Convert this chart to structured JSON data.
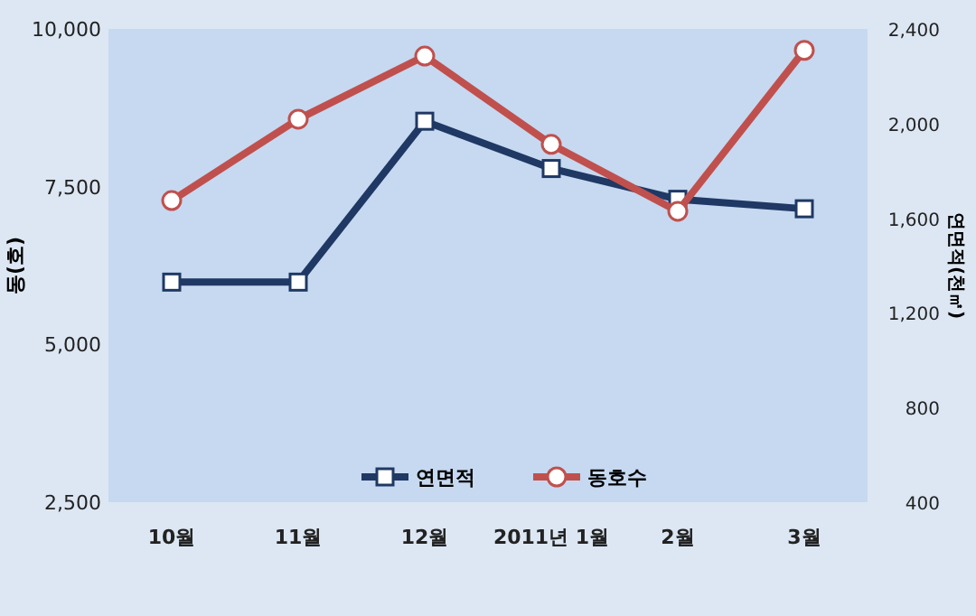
{
  "chart_data": {
    "type": "line",
    "categories": [
      "10월",
      "11월",
      "12월",
      "2011년 1월",
      "2월",
      "3월"
    ],
    "ylabel": "동(호)",
    "y2label": "연면적(천㎡)",
    "ylim": [
      2500,
      10000
    ],
    "yticks": [
      {
        "value": 2500,
        "label": "2,500"
      },
      {
        "value": 5000,
        "label": "5,000"
      },
      {
        "value": 7500,
        "label": "7,500"
      },
      {
        "value": 10000,
        "label": "10,000"
      }
    ],
    "y2lim": [
      400,
      2400
    ],
    "y2ticks": [
      400,
      800,
      {
        "value": 1200,
        "label": "1,200"
      },
      {
        "value": 1600,
        "label": "1,600"
      },
      {
        "value": 2000,
        "label": "2,000"
      },
      {
        "value": 2400,
        "label": "2,400"
      }
    ],
    "legend": "bottom",
    "grid": false,
    "series": [
      {
        "name": "연면적",
        "color": "#1f3864",
        "axis": "y2",
        "marker": "square",
        "values": [
          1330,
          1330,
          2010,
          1810,
          1680,
          1640
        ]
      },
      {
        "name": "동호수",
        "color": "#c0504d",
        "axis": "y",
        "marker": "circle",
        "values": [
          7280,
          8570,
          9570,
          8170,
          7110,
          9660
        ]
      }
    ]
  }
}
